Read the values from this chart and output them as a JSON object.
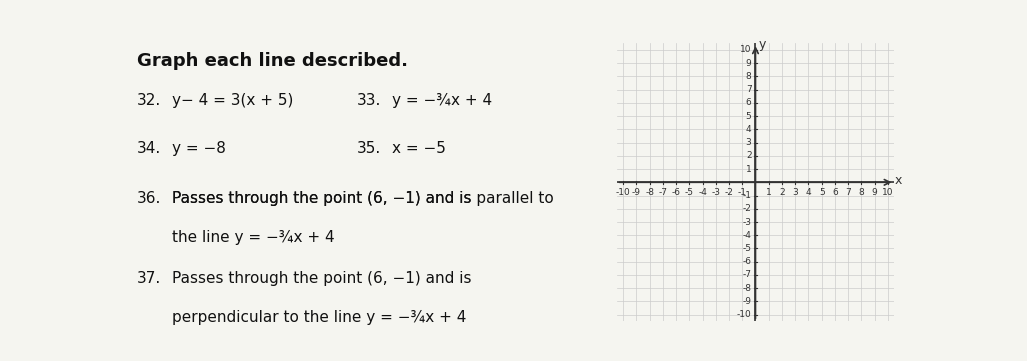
{
  "title_text": "Graph each line described.",
  "problems": [
    {
      "num": "32.",
      "text": "y−4=3(x+5)"
    },
    {
      "num": "33.",
      "text": "y=−¾x+4"
    },
    {
      "num": "34.",
      "text": "y=−8"
    },
    {
      "num": "35.",
      "text": "x=−5"
    },
    {
      "num": "36.",
      "text_line1": "Passes through the point (6,−1) and is parallel to",
      "text_line2": "the line y=−¾x+4",
      "underline_word": "parallel"
    },
    {
      "num": "37.",
      "text_line1": "Passes through the point (6,−1) and is",
      "text_line2": "perpendicular to the line y=−¾x+4",
      "underline_word": "perpendicular"
    }
  ],
  "axis_range": [
    -10,
    10
  ],
  "grid_color": "#cccccc",
  "axis_color": "#333333",
  "background_color": "#f5f5f0",
  "text_color": "#111111",
  "title_fontsize": 13,
  "label_fontsize": 11
}
